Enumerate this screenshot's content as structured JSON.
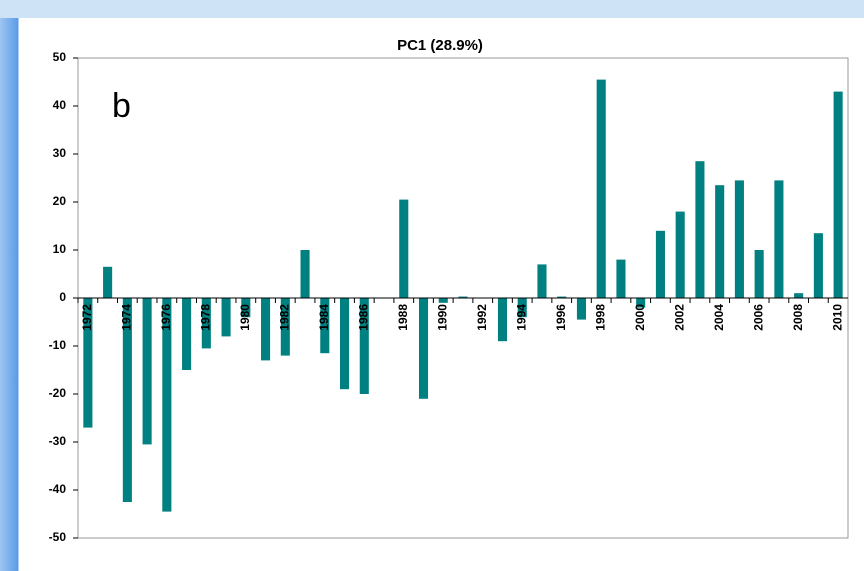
{
  "chart_data": {
    "type": "bar",
    "title": "PC1 (28.9%)",
    "annotation": "b",
    "categories": [
      "1972",
      null,
      "1974",
      null,
      "1976",
      null,
      "1978",
      null,
      "1980",
      null,
      "1982",
      null,
      "1984",
      null,
      "1986",
      null,
      "1988",
      null,
      "1990",
      null,
      "1992",
      null,
      "1994",
      null,
      "1996",
      null,
      "1998",
      null,
      "2000",
      null,
      "2002",
      null,
      "2004",
      null,
      "2006",
      null,
      "2008",
      null,
      "2010"
    ],
    "values": [
      -27,
      6.5,
      -42.5,
      -30.5,
      -44.5,
      -15,
      -10.5,
      -8,
      -4,
      -13,
      -12,
      10,
      -11.5,
      -19,
      -20,
      0,
      20.5,
      -21,
      -1,
      0.3,
      0,
      -9,
      -4,
      7,
      0.3,
      -4.5,
      45.5,
      8,
      -2,
      14,
      18,
      28.5,
      23.5,
      24.5,
      10,
      24.5,
      1,
      13.5,
      43
    ],
    "color": "#008080",
    "ylim": [
      -50,
      50
    ],
    "yticks": [
      -50,
      -40,
      -30,
      -20,
      -10,
      0,
      10,
      20,
      30,
      40,
      50
    ],
    "grid": false
  }
}
